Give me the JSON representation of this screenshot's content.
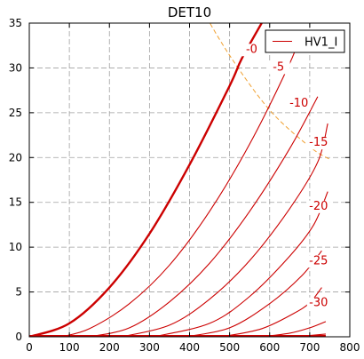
{
  "chart_data": {
    "type": "line",
    "title": "DET10",
    "xlabel": "",
    "ylabel": "",
    "xlim": [
      0,
      800
    ],
    "ylim": [
      0,
      35
    ],
    "x_ticks": [
      0,
      100,
      200,
      300,
      400,
      500,
      600,
      700,
      800
    ],
    "y_ticks": [
      0,
      5,
      10,
      15,
      20,
      25,
      30,
      35
    ],
    "grid": true,
    "legend": {
      "position": "top-right",
      "entries": [
        "HV1_I"
      ]
    },
    "colors": {
      "curve": "#cc0000",
      "load_line": "#f0a030",
      "grid": "#a0a0a0"
    },
    "series": [
      {
        "label": "-0",
        "highlight": true,
        "label_at": [
          555,
          31.7
        ],
        "points": [
          [
            0,
            0
          ],
          [
            100,
            1.5
          ],
          [
            200,
            5.5
          ],
          [
            300,
            11.5
          ],
          [
            400,
            19.2
          ],
          [
            500,
            28.0
          ],
          [
            530,
            31.0
          ],
          [
            580,
            35.0
          ]
        ]
      },
      {
        "label": "-5",
        "highlight": false,
        "label_at": [
          622,
          29.7
        ],
        "points": [
          [
            80,
            0
          ],
          [
            150,
            0.9
          ],
          [
            250,
            3.7
          ],
          [
            350,
            8.0
          ],
          [
            450,
            14.0
          ],
          [
            550,
            21.5
          ],
          [
            650,
            30.5
          ],
          [
            675,
            33.5
          ]
        ]
      },
      {
        "label": "-10",
        "highlight": false,
        "label_at": [
          673,
          25.7
        ],
        "points": [
          [
            150,
            0
          ],
          [
            250,
            1.0
          ],
          [
            350,
            3.9
          ],
          [
            450,
            8.2
          ],
          [
            550,
            14.0
          ],
          [
            650,
            21.0
          ],
          [
            720,
            26.8
          ]
        ]
      },
      {
        "label": "-15",
        "highlight": false,
        "label_at": [
          722,
          21.3
        ],
        "points": [
          [
            230,
            0
          ],
          [
            350,
            1.3
          ],
          [
            450,
            4.2
          ],
          [
            550,
            8.5
          ],
          [
            650,
            14.3
          ],
          [
            720,
            19.5
          ],
          [
            745,
            23.8
          ]
        ]
      },
      {
        "label": "-20",
        "highlight": false,
        "label_at": [
          722,
          14.2
        ],
        "points": [
          [
            310,
            0
          ],
          [
            450,
            1.5
          ],
          [
            550,
            4.5
          ],
          [
            650,
            9.0
          ],
          [
            710,
            12.5
          ],
          [
            745,
            16.2
          ]
        ]
      },
      {
        "label": "-25",
        "highlight": false,
        "label_at": [
          722,
          8.1
        ],
        "points": [
          [
            390,
            0
          ],
          [
            500,
            1.0
          ],
          [
            600,
            3.7
          ],
          [
            680,
            6.8
          ],
          [
            730,
            9.6
          ]
        ]
      },
      {
        "label": "-30",
        "highlight": false,
        "label_at": [
          722,
          3.4
        ],
        "points": [
          [
            480,
            0
          ],
          [
            580,
            0.9
          ],
          [
            660,
            2.6
          ],
          [
            700,
            3.8
          ],
          [
            730,
            5.5
          ]
        ]
      },
      {
        "label": "",
        "highlight": false,
        "label_at": null,
        "points": [
          [
            580,
            0
          ],
          [
            650,
            0.4
          ],
          [
            700,
            1.0
          ],
          [
            740,
            1.7
          ]
        ]
      },
      {
        "label": "",
        "highlight": false,
        "label_at": null,
        "points": [
          [
            660,
            0
          ],
          [
            740,
            0.3
          ]
        ]
      }
    ],
    "load_line": {
      "points": [
        [
          425,
          37
        ],
        [
          500,
          31.4
        ],
        [
          600,
          25.3
        ],
        [
          700,
          21.2
        ],
        [
          750,
          19.8
        ]
      ]
    },
    "baseline": {
      "from": 0,
      "to": 740
    }
  }
}
